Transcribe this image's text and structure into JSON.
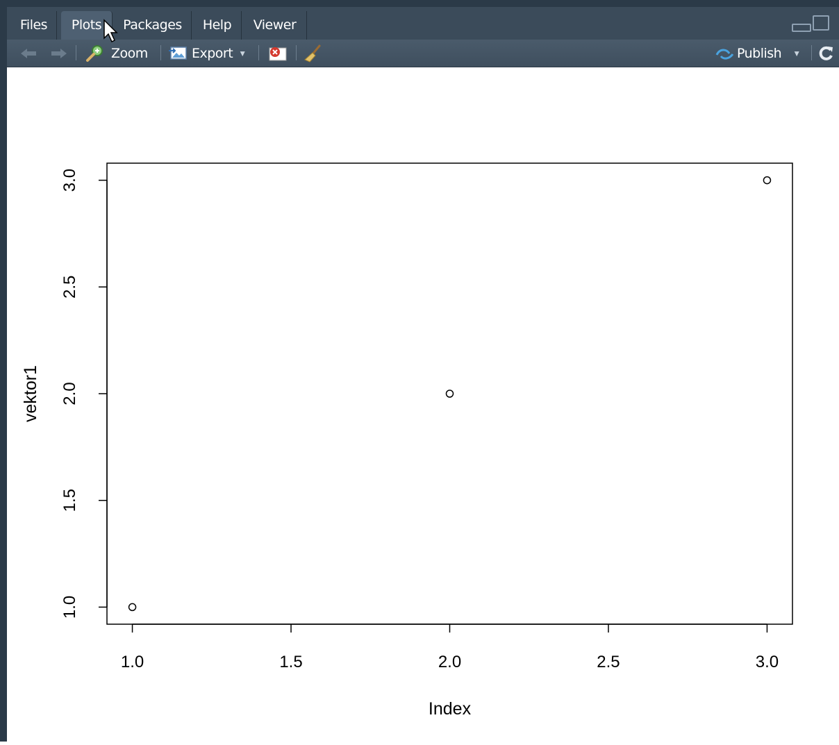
{
  "tabs": [
    {
      "label": "Files",
      "active": false
    },
    {
      "label": "Plots",
      "active": true
    },
    {
      "label": "Packages",
      "active": false
    },
    {
      "label": "Help",
      "active": false
    },
    {
      "label": "Viewer",
      "active": false
    }
  ],
  "toolbar": {
    "back_icon": "arrow-left-icon",
    "forward_icon": "arrow-right-icon",
    "zoom_label": "Zoom",
    "export_label": "Export",
    "publish_label": "Publish",
    "remove_icon": "remove-plot-icon",
    "clear_icon": "broom-icon",
    "refresh_icon": "refresh-icon"
  },
  "colors": {
    "pane_dark": "#2b3a48",
    "tabbar": "#3b4b5a",
    "active_tab": "#4e6072",
    "publish_icon": "#4aa3df"
  },
  "chart_data": {
    "type": "scatter",
    "x": [
      1.0,
      2.0,
      3.0
    ],
    "y": [
      1.0,
      2.0,
      3.0
    ],
    "xlabel": "Index",
    "ylabel": "vektor1",
    "xlim": [
      0.92,
      3.08
    ],
    "ylim": [
      0.92,
      3.08
    ],
    "xticks": [
      "1.0",
      "1.5",
      "2.0",
      "2.5",
      "3.0"
    ],
    "yticks": [
      "1.0",
      "1.5",
      "2.0",
      "2.5",
      "3.0"
    ],
    "marker": "open-circle",
    "grid": false
  }
}
